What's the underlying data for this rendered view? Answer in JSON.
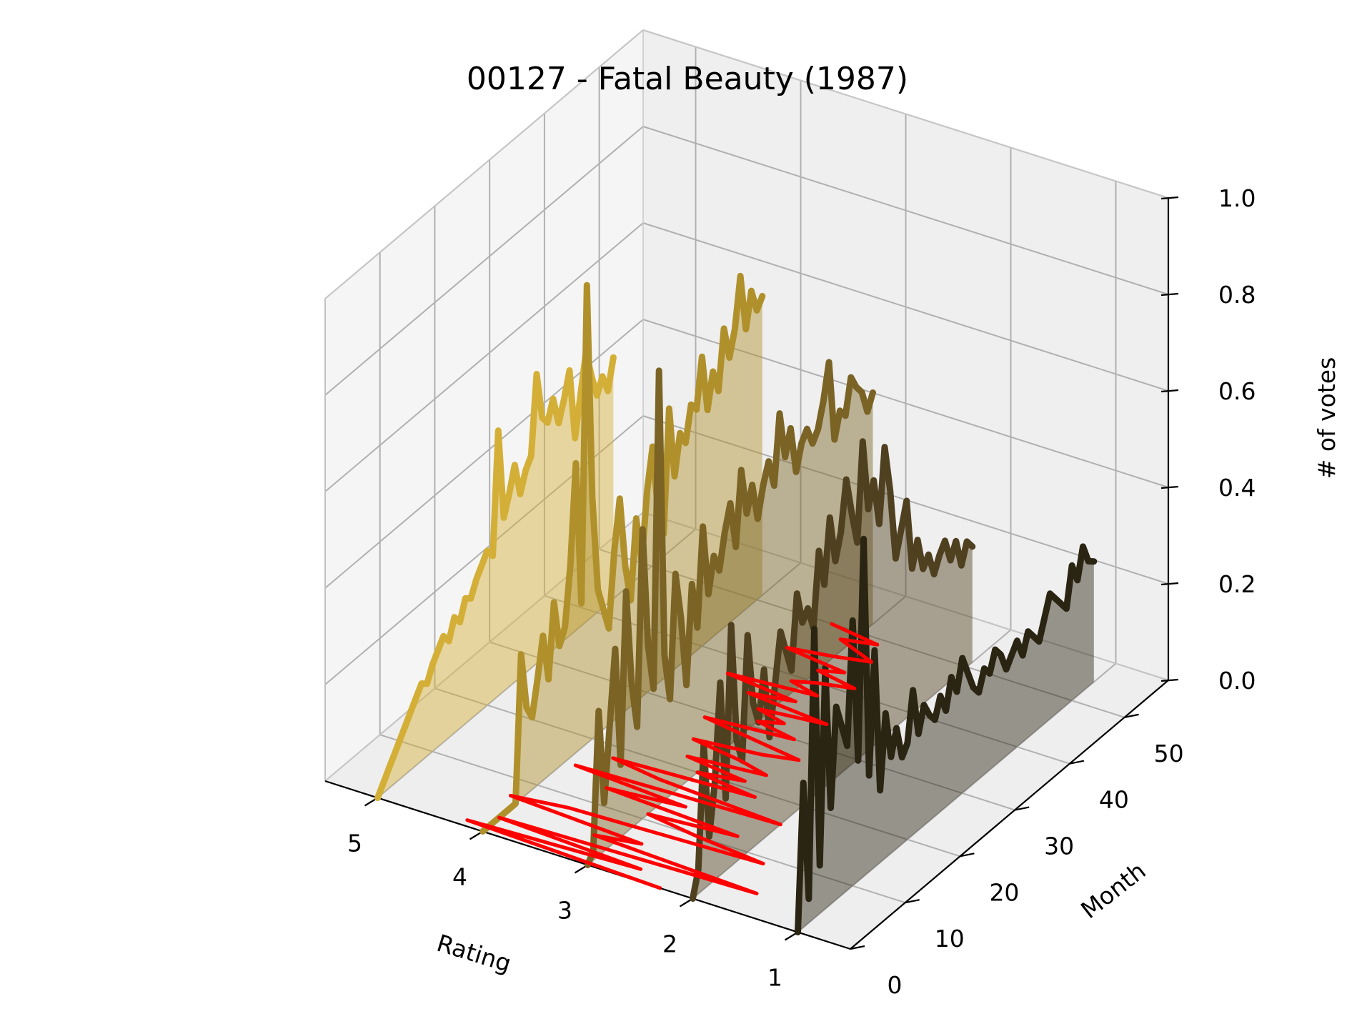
{
  "chart_data": {
    "type": "line",
    "variant": "3d-waterfall",
    "title": "00127 - Fatal Beauty (1987)",
    "xlabel": "Rating",
    "ylabel": "Month",
    "zlabel": "# of votes",
    "x_ticks": [
      "5",
      "4",
      "3",
      "2",
      "1"
    ],
    "y_ticks": [
      "0",
      "10",
      "20",
      "30",
      "40",
      "50"
    ],
    "z_ticks": [
      "0.0",
      "0.2",
      "0.4",
      "0.6",
      "0.8",
      "1.0"
    ],
    "xlim": [
      0.5,
      5.5
    ],
    "ylim": [
      0,
      58
    ],
    "zlim": [
      0,
      1
    ],
    "grid": true,
    "colors": {
      "rating_5": "#d4af37",
      "rating_4": "#b0902a",
      "rating_3": "#7a6324",
      "rating_2": "#4f4020",
      "rating_1": "#2a2412",
      "mean_line": "#ff0000",
      "pane": "#f2f2f2",
      "grid": "#b0b0b0"
    },
    "series": [
      {
        "rating": 5,
        "values": [
          0.0,
          0.02,
          0.04,
          0.06,
          0.08,
          0.1,
          0.12,
          0.14,
          0.16,
          0.15,
          0.18,
          0.2,
          0.22,
          0.2,
          0.24,
          0.22,
          0.26,
          0.25,
          0.28,
          0.3,
          0.32,
          0.3,
          0.55,
          0.36,
          0.4,
          0.45,
          0.38,
          0.42,
          0.44,
          0.6,
          0.5,
          0.48,
          0.52,
          0.46,
          0.5,
          0.55,
          0.4,
          0.48,
          0.56,
          0.5,
          0.45,
          0.48,
          0.44,
          0.5
        ]
      },
      {
        "rating": 4,
        "values": [
          0.0,
          0.0,
          0.0,
          0.0,
          0.0,
          0.0,
          0.0,
          0.3,
          0.18,
          0.15,
          0.22,
          0.3,
          0.2,
          0.35,
          0.25,
          0.28,
          0.4,
          0.6,
          0.3,
          0.95,
          0.5,
          0.3,
          0.25,
          0.2,
          0.35,
          0.45,
          0.3,
          0.22,
          0.38,
          0.28,
          0.42,
          0.5,
          0.35,
          0.3,
          0.55,
          0.4,
          0.48,
          0.45,
          0.52,
          0.5,
          0.6,
          0.48,
          0.55,
          0.5,
          0.62,
          0.55,
          0.6,
          0.7,
          0.58,
          0.65,
          0.6,
          0.62
        ]
      },
      {
        "rating": 3,
        "values": [
          0.0,
          0.02,
          0.3,
          0.1,
          0.25,
          0.4,
          0.15,
          0.5,
          0.3,
          0.2,
          0.6,
          0.35,
          0.25,
          0.9,
          0.3,
          0.2,
          0.45,
          0.35,
          0.2,
          0.4,
          0.3,
          0.5,
          0.35,
          0.42,
          0.38,
          0.45,
          0.5,
          0.4,
          0.55,
          0.45,
          0.5,
          0.42,
          0.48,
          0.52,
          0.46,
          0.6,
          0.5,
          0.55,
          0.45,
          0.5,
          0.52,
          0.48,
          0.5,
          0.55,
          0.62,
          0.45,
          0.5,
          0.48,
          0.55,
          0.52,
          0.5,
          0.45,
          0.48
        ]
      },
      {
        "rating": 2,
        "values": [
          0.0,
          0.05,
          0.3,
          0.1,
          0.2,
          0.4,
          0.15,
          0.5,
          0.25,
          0.2,
          0.45,
          0.3,
          0.25,
          0.35,
          0.2,
          0.3,
          0.4,
          0.35,
          0.3,
          0.45,
          0.38,
          0.4,
          0.35,
          0.5,
          0.42,
          0.55,
          0.45,
          0.5,
          0.6,
          0.52,
          0.45,
          0.65,
          0.5,
          0.55,
          0.45,
          0.6,
          0.5,
          0.35,
          0.4,
          0.45,
          0.3,
          0.35,
          0.28,
          0.3,
          0.25,
          0.28,
          0.3,
          0.25,
          0.28,
          0.22,
          0.26,
          0.24
        ]
      },
      {
        "rating": 1,
        "values": [
          0.0,
          0.3,
          0.05,
          0.6,
          0.1,
          0.5,
          0.2,
          0.4,
          0.35,
          0.3,
          0.55,
          0.25,
          0.7,
          0.2,
          0.45,
          0.15,
          0.3,
          0.2,
          0.25,
          0.18,
          0.2,
          0.3,
          0.2,
          0.25,
          0.22,
          0.2,
          0.24,
          0.2,
          0.26,
          0.22,
          0.28,
          0.24,
          0.2,
          0.18,
          0.22,
          0.2,
          0.24,
          0.22,
          0.18,
          0.2,
          0.22,
          0.18,
          0.22,
          0.2,
          0.18,
          0.22,
          0.26,
          0.24,
          0.22,
          0.2,
          0.28,
          0.24,
          0.3,
          0.26,
          0.25
        ]
      }
    ],
    "mean_rating": [
      2.3,
      4.2,
      2.6,
      4.0,
      1.6,
      3.2,
      2.8,
      4.1,
      3.6,
      1.8,
      2.5,
      3.0,
      2.2,
      3.5,
      2.8,
      3.9,
      2.0,
      3.2,
      3.7,
      2.4,
      3.0,
      2.6,
      3.2,
      2.5,
      2.8,
      3.3,
      2.7,
      2.4,
      2.9,
      3.4,
      2.6,
      3.0,
      2.8,
      3.1,
      2.5,
      3.3,
      2.9,
      3.6,
      2.8,
      3.1,
      2.9,
      2.6,
      3.0,
      2.8,
      3.4,
      3.0,
      2.7,
      2.9,
      3.1,
      2.8,
      3.3
    ]
  }
}
